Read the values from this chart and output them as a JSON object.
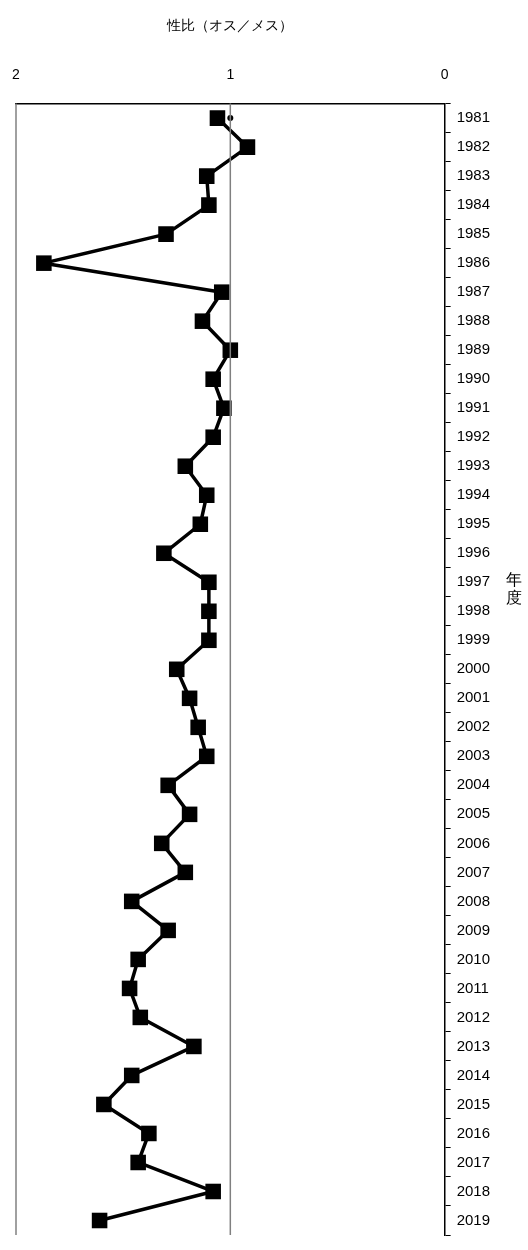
{
  "chart_data": {
    "type": "line",
    "orientation": "horizontal",
    "xlabel": "性比（オス／メス）",
    "ylabel": "年度",
    "categories": [
      "1981",
      "1982",
      "1983",
      "1984",
      "1985",
      "1986",
      "1987",
      "1988",
      "1989",
      "1990",
      "1991",
      "1992",
      "1993",
      "1994",
      "1995",
      "1996",
      "1997",
      "1998",
      "1999",
      "2000",
      "2001",
      "2002",
      "2003",
      "2004",
      "2005",
      "2006",
      "2007",
      "2008",
      "2009",
      "2010",
      "2011",
      "2012",
      "2013",
      "2014",
      "2015",
      "2016",
      "2017",
      "2018",
      "2019"
    ],
    "series": [
      {
        "color": "#000000",
        "marker": "square",
        "line_style": "solid",
        "values": [
          1.06,
          0.92,
          1.11,
          1.1,
          1.3,
          1.87,
          1.04,
          1.13,
          1.0,
          1.08,
          1.03,
          1.08,
          1.21,
          1.11,
          1.14,
          1.31,
          1.1,
          1.1,
          1.1,
          1.25,
          1.19,
          1.15,
          1.11,
          1.29,
          1.19,
          1.32,
          1.21,
          1.46,
          1.29,
          1.43,
          1.47,
          1.42,
          1.17,
          1.46,
          1.59,
          1.38,
          1.43,
          1.08,
          1.61
        ]
      },
      {
        "type": "scatter",
        "color": "#000000",
        "marker": "circle",
        "values": [
          1.0,
          null,
          null,
          null,
          null,
          null,
          null,
          null,
          null,
          null,
          null,
          null,
          null,
          null,
          null,
          null,
          null,
          null,
          null,
          null,
          null,
          null,
          null,
          null,
          null,
          null,
          null,
          null,
          null,
          null,
          null,
          null,
          null,
          null,
          null,
          null,
          null,
          null,
          null
        ]
      }
    ],
    "xlim": [
      2,
      0
    ],
    "xticks": [
      0,
      1,
      2
    ],
    "grid": false,
    "legend": false,
    "ref_lines": [
      {
        "axis": "x",
        "value": 1,
        "color": "#808080"
      }
    ]
  }
}
